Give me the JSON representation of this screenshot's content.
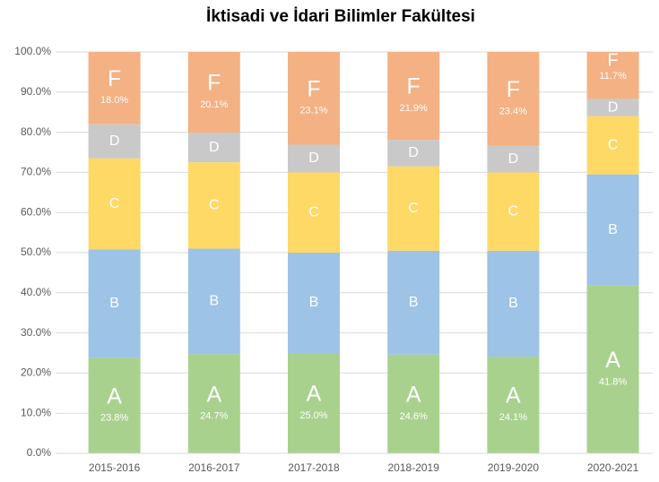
{
  "chart_data": {
    "type": "stacked_bar",
    "title": "İktisadi ve İdari Bilimler Fakültesi",
    "categories": [
      "2015-2016",
      "2016-2017",
      "2017-2018",
      "2018-2019",
      "2019-2020",
      "2020-2021"
    ],
    "series": [
      {
        "name": "A",
        "color": "#a9d18e",
        "values": [
          23.8,
          24.7,
          25.0,
          24.6,
          24.1,
          41.8
        ],
        "value_labels": [
          "23.8%",
          "24.7%",
          "25.0%",
          "24.6%",
          "24.1%",
          "41.8%"
        ]
      },
      {
        "name": "B",
        "color": "#9dc3e6",
        "values": [
          27.0,
          26.3,
          25.0,
          25.9,
          26.4,
          27.7
        ]
      },
      {
        "name": "C",
        "color": "#ffd966",
        "values": [
          22.7,
          21.5,
          20.0,
          21.0,
          19.5,
          14.5
        ]
      },
      {
        "name": "D",
        "color": "#c9c9c9",
        "values": [
          8.5,
          7.4,
          6.9,
          6.6,
          6.6,
          4.3
        ]
      },
      {
        "name": "F",
        "color": "#f4b183",
        "values": [
          18.0,
          20.1,
          23.1,
          21.9,
          23.4,
          11.7
        ],
        "value_labels": [
          "18.0%",
          "20.1%",
          "23.1%",
          "21.9%",
          "23.4%",
          "11.7%"
        ]
      }
    ],
    "ylim": [
      0,
      100
    ],
    "yticks": [
      {
        "value": 0,
        "label": "0.0%"
      },
      {
        "value": 10,
        "label": "10.0%"
      },
      {
        "value": 20,
        "label": "20.0%"
      },
      {
        "value": 30,
        "label": "30.0%"
      },
      {
        "value": 40,
        "label": "40.0%"
      },
      {
        "value": 50,
        "label": "50.0%"
      },
      {
        "value": 60,
        "label": "60.0%"
      },
      {
        "value": 70,
        "label": "70.0%"
      },
      {
        "value": 80,
        "label": "80.0%"
      },
      {
        "value": 90,
        "label": "90.0%"
      },
      {
        "value": 100,
        "label": "100.0%"
      }
    ],
    "grid": true
  }
}
